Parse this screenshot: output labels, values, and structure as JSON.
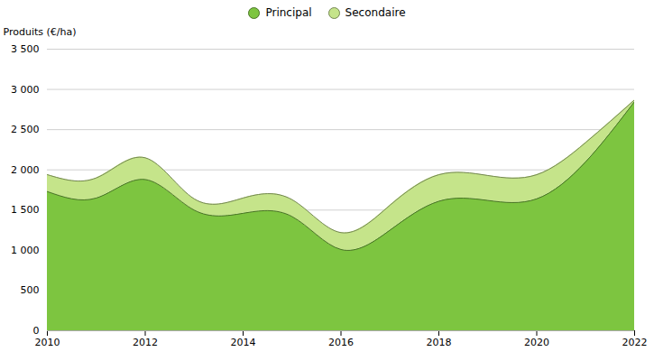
{
  "chart_data": {
    "type": "area",
    "x": [
      2010,
      2011,
      2012,
      2013,
      2014,
      2015,
      2016,
      2017,
      2018,
      2019,
      2020,
      2021,
      2022
    ],
    "series": [
      {
        "name": "Principal",
        "color": "#7DC540",
        "values": [
          1730,
          1650,
          1880,
          1500,
          1460,
          1420,
          1010,
          1250,
          1610,
          1620,
          1640,
          2100,
          2850
        ]
      },
      {
        "name": "Secondaire",
        "color": "#C5E48A",
        "values": [
          1940,
          1900,
          2150,
          1640,
          1650,
          1630,
          1220,
          1560,
          1940,
          1930,
          1940,
          2340,
          2870
        ]
      }
    ],
    "ylabel": "Produits (€/ha)",
    "xlim": [
      2010,
      2022
    ],
    "xticks": [
      2010,
      2012,
      2014,
      2016,
      2018,
      2020,
      2022
    ],
    "ylim": [
      0,
      3500
    ],
    "yticks": [
      0,
      500,
      {
        "value": 1000,
        "label": "1 000"
      },
      {
        "value": 1500,
        "label": "1 500"
      },
      {
        "value": 2000,
        "label": "2 000"
      },
      {
        "value": 2500,
        "label": "2 500"
      },
      {
        "value": 3000,
        "label": "3 000"
      },
      {
        "value": 3500,
        "label": "3 500"
      }
    ],
    "grid": true,
    "legend": "top"
  }
}
